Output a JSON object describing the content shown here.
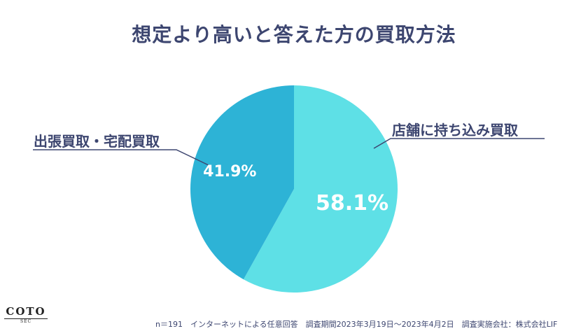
{
  "title": "想定より高いと答えた方の買取方法",
  "chart_data": {
    "type": "pie",
    "title": "想定より高いと答えた方の買取方法",
    "slices": [
      {
        "label": "店舗に持ち込み買取",
        "value": 58.1,
        "display": "58.1%",
        "color": "#5ee0e6"
      },
      {
        "label": "出張買取・宅配買取",
        "value": 41.9,
        "display": "41.9%",
        "color": "#2db3d6"
      }
    ],
    "start": "12 o'clock",
    "direction": "clockwise"
  },
  "footer": "n＝191　インターネットによる任意回答　調査期間2023年3月19日〜2023年4月2日　調査実施会社：株式会社LIF",
  "logo": {
    "name": "COTO",
    "sub": "SEC"
  }
}
